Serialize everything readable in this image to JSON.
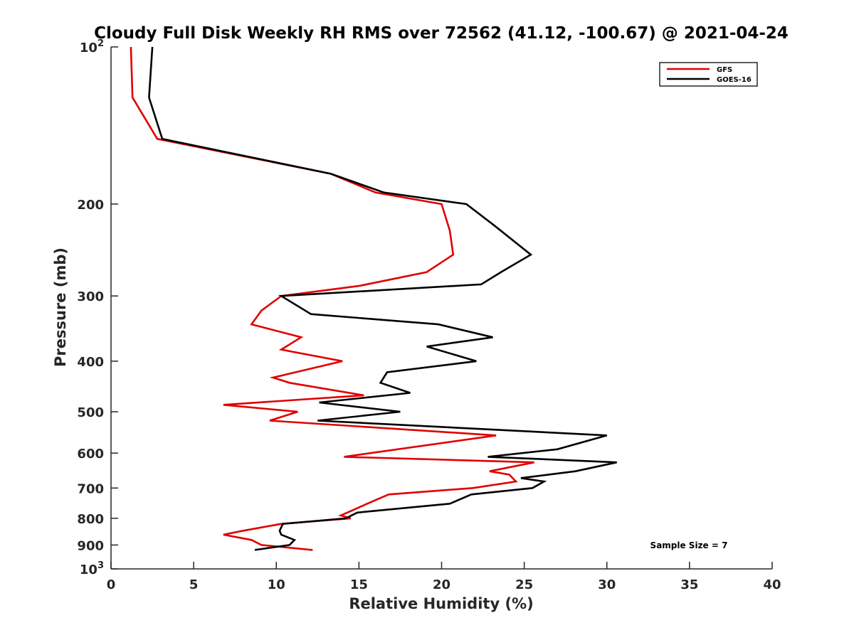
{
  "chart_data": {
    "type": "line",
    "title": "Cloudy Full Disk Weekly RH RMS over 72562 (41.12, -100.67) @ 2021-04-24",
    "xlabel": "Relative Humidity (%)",
    "ylabel": "Pressure (mb)",
    "xlim": [
      0,
      40
    ],
    "ylim": [
      100,
      1000
    ],
    "y_scale": "log",
    "y_reversed": true,
    "x_ticks": [
      "0",
      "5",
      "10",
      "15",
      "20",
      "25",
      "30",
      "35",
      "40"
    ],
    "x_tick_values": [
      0,
      5,
      10,
      15,
      20,
      25,
      30,
      35,
      40
    ],
    "y_ticks": [
      {
        "value": 100,
        "base": "10",
        "exp": "2"
      },
      {
        "value": 200,
        "label": "200"
      },
      {
        "value": 300,
        "label": "300"
      },
      {
        "value": 400,
        "label": "400"
      },
      {
        "value": 500,
        "label": "500"
      },
      {
        "value": 600,
        "label": "600"
      },
      {
        "value": 700,
        "label": "700"
      },
      {
        "value": 800,
        "label": "800"
      },
      {
        "value": 900,
        "label": "900"
      },
      {
        "value": 1000,
        "base": "10",
        "exp": "3"
      }
    ],
    "grid": false,
    "legend_position": "top-right",
    "annotation": "Sample Size = 7",
    "series": [
      {
        "name": "GFS",
        "color": "#e00000",
        "points": [
          [
            1.2,
            100
          ],
          [
            1.3,
            125
          ],
          [
            2.8,
            150
          ],
          [
            13.3,
            175
          ],
          [
            16,
            190
          ],
          [
            20,
            200
          ],
          [
            20.5,
            225
          ],
          [
            20.7,
            250
          ],
          [
            19.1,
            270
          ],
          [
            15,
            287
          ],
          [
            10.3,
            300
          ],
          [
            9.1,
            320
          ],
          [
            8.5,
            340
          ],
          [
            11.5,
            360
          ],
          [
            10.3,
            380
          ],
          [
            14,
            400
          ],
          [
            9.8,
            430
          ],
          [
            10.8,
            440
          ],
          [
            15.3,
            465
          ],
          [
            6.8,
            485
          ],
          [
            11.3,
            500
          ],
          [
            9.6,
            520
          ],
          [
            23.3,
            555
          ],
          [
            14.1,
            610
          ],
          [
            25.6,
            625
          ],
          [
            22.9,
            650
          ],
          [
            24.1,
            660
          ],
          [
            24.5,
            680
          ],
          [
            21.9,
            700
          ],
          [
            16.8,
            720
          ],
          [
            15.5,
            750
          ],
          [
            14.7,
            770
          ],
          [
            13.9,
            790
          ],
          [
            14.5,
            800
          ],
          [
            10.3,
            820
          ],
          [
            8,
            845
          ],
          [
            6.8,
            860
          ],
          [
            8.5,
            880
          ],
          [
            9.1,
            900
          ],
          [
            12.2,
            920
          ]
        ]
      },
      {
        "name": "GOES-16",
        "color": "#000000",
        "points": [
          [
            2.5,
            100
          ],
          [
            2.3,
            125
          ],
          [
            3.1,
            150
          ],
          [
            13.3,
            175
          ],
          [
            16.5,
            190
          ],
          [
            21.5,
            200
          ],
          [
            23.2,
            220
          ],
          [
            25.4,
            250
          ],
          [
            23.6,
            270
          ],
          [
            22.4,
            285
          ],
          [
            10.3,
            300
          ],
          [
            12.1,
            325
          ],
          [
            19.8,
            340
          ],
          [
            23.1,
            360
          ],
          [
            19.1,
            375
          ],
          [
            22.1,
            400
          ],
          [
            16.7,
            420
          ],
          [
            16.3,
            440
          ],
          [
            18.1,
            460
          ],
          [
            12.6,
            480
          ],
          [
            17.5,
            500
          ],
          [
            12.5,
            520
          ],
          [
            30,
            555
          ],
          [
            27,
            590
          ],
          [
            22.8,
            610
          ],
          [
            30.6,
            625
          ],
          [
            28.1,
            650
          ],
          [
            24.8,
            670
          ],
          [
            26.2,
            680
          ],
          [
            25.5,
            700
          ],
          [
            21.8,
            720
          ],
          [
            20.5,
            750
          ],
          [
            14.9,
            780
          ],
          [
            14.2,
            800
          ],
          [
            10.4,
            820
          ],
          [
            10.2,
            845
          ],
          [
            10.3,
            860
          ],
          [
            11.1,
            880
          ],
          [
            10.8,
            900
          ],
          [
            8.7,
            920
          ]
        ]
      }
    ]
  }
}
